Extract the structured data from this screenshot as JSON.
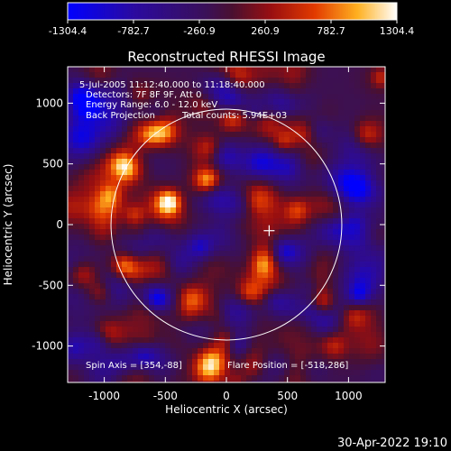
{
  "chart_data": {
    "type": "heatmap",
    "title": "Reconstructed RHESSI Image",
    "xlabel": "Heliocentric X (arcsec)",
    "ylabel": "Heliocentric Y (arcsec)",
    "xlim": [
      -1300,
      1300
    ],
    "ylim": [
      -1300,
      1300
    ],
    "xticks": [
      -1000,
      -500,
      0,
      500,
      1000
    ],
    "yticks": [
      -1000,
      -500,
      0,
      500,
      1000
    ],
    "colorbar": {
      "ticks": [
        "-1304.4",
        "-782.7",
        "-260.9",
        "260.9",
        "782.7",
        "1304.4"
      ],
      "range": [
        -1304.4,
        1304.4
      ]
    },
    "solar_disk_radius_arcsec": 945,
    "flare_marker": [
      350,
      -50
    ],
    "bright_sources": [
      {
        "x": -470,
        "y": 190,
        "level": 1304
      },
      {
        "x": -150,
        "y": 370,
        "level": 700
      },
      {
        "x": 580,
        "y": 120,
        "level": 650
      },
      {
        "x": -850,
        "y": -330,
        "level": 600
      },
      {
        "x": 800,
        "y": -650,
        "level": 650
      },
      {
        "x": -950,
        "y": 250,
        "level": 550
      },
      {
        "x": 0,
        "y": -950,
        "level": 600
      },
      {
        "x": 300,
        "y": -350,
        "level": 550
      },
      {
        "x": -300,
        "y": -600,
        "level": 500
      }
    ]
  },
  "annotations": {
    "date_line": "5-Jul-2005 11:12:40.000 to 11:18:40.000",
    "detectors": "Detectors: 7F 8F 9F, Att 0",
    "energy": "Energy Range: 6.0 - 12.0 keV",
    "method": "Back Projection",
    "counts": "Total counts: 5.94E+03",
    "spin_axis": "Spin Axis = [354,-88]",
    "flare_position": "Flare Position = [-518,286]"
  },
  "footer": {
    "timestamp": "30-Apr-2022 19:10"
  }
}
